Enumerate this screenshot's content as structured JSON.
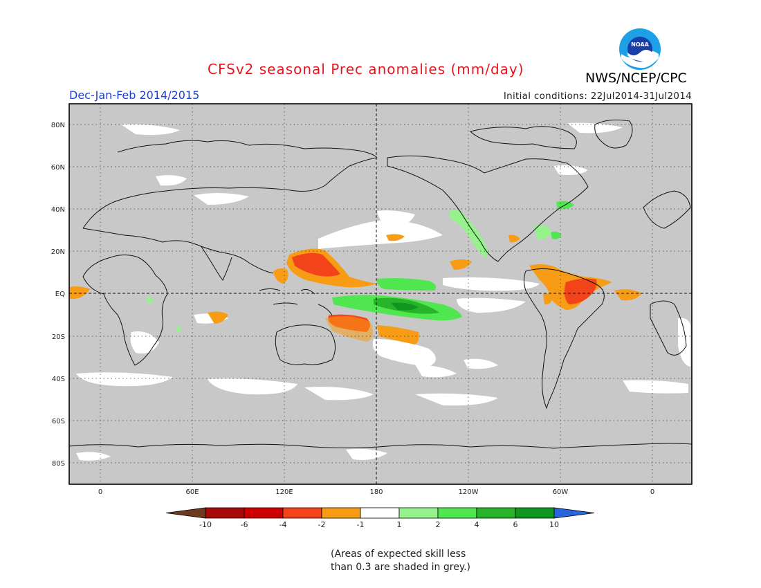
{
  "header": {
    "title": "CFSv2 seasonal Prec anomalies (mm/day)",
    "season": "Dec-Jan-Feb 2014/2015",
    "initial_conditions": "Initial conditions: 22Jul2014-31Jul2014",
    "agency": "NWS/NCEP/CPC",
    "logo_text": "NOAA"
  },
  "map": {
    "lat_labels": [
      "80N",
      "60N",
      "40N",
      "20N",
      "EQ",
      "20S",
      "40S",
      "60S",
      "80S"
    ],
    "lon_labels": [
      "0",
      "60E",
      "120E",
      "180",
      "120W",
      "60W",
      "0"
    ],
    "background_color": "#c8c8c8"
  },
  "colorbar": {
    "ticks": [
      "-10",
      "-6",
      "-4",
      "-2",
      "-1",
      "1",
      "2",
      "4",
      "6",
      "10"
    ],
    "colors": [
      "#6e3b1e",
      "#a80a0a",
      "#cc0000",
      "#f2431a",
      "#f79c14",
      "#ffffff",
      "#96f28c",
      "#50e650",
      "#28b428",
      "#0f961e",
      "#2864dc"
    ]
  },
  "footnote": {
    "line1": "(Areas of expected skill less",
    "line2": "than 0.3 are shaded in grey.)"
  }
}
